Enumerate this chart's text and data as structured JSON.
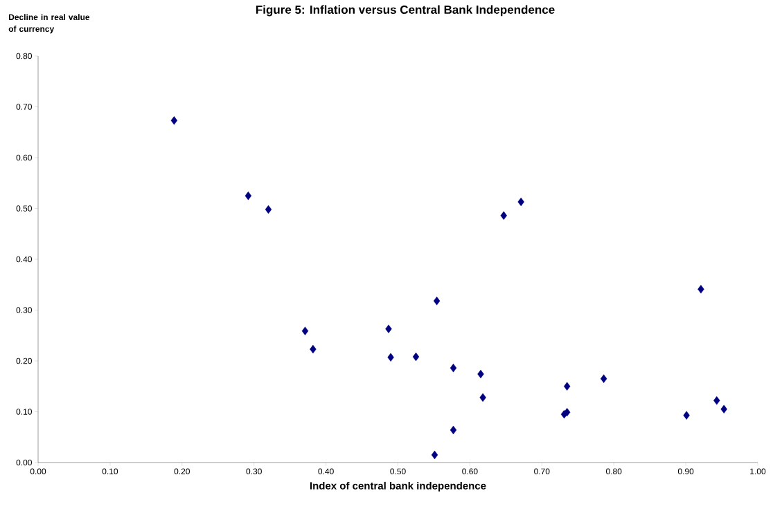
{
  "chart_data": {
    "type": "scatter",
    "title": "Figure 5: Inflation versus Central Bank Independence",
    "xlabel": "Index of central bank independence",
    "ylabel": "Decline in real value of currency",
    "x": [
      0.189,
      0.292,
      0.32,
      0.371,
      0.382,
      0.487,
      0.49,
      0.525,
      0.554,
      0.551,
      0.577,
      0.577,
      0.615,
      0.618,
      0.647,
      0.671,
      0.731,
      0.735,
      0.735,
      0.786,
      0.901,
      0.921,
      0.943,
      0.953
    ],
    "values": [
      0.673,
      0.525,
      0.498,
      0.259,
      0.223,
      0.263,
      0.207,
      0.208,
      0.318,
      0.015,
      0.186,
      0.064,
      0.174,
      0.128,
      0.486,
      0.513,
      0.095,
      0.099,
      0.15,
      0.165,
      0.093,
      0.341,
      0.122,
      0.105
    ],
    "color": "#000080",
    "marker": "diamond",
    "grid": false,
    "xlim": [
      0,
      1
    ],
    "ylim": [
      0,
      0.8
    ],
    "xticks": [
      {
        "value": 0,
        "label": "0.00"
      },
      {
        "value": 0.1,
        "label": "0.10"
      },
      {
        "value": 0.2,
        "label": "0.20"
      },
      {
        "value": 0.3,
        "label": "0.30"
      },
      {
        "value": 0.4,
        "label": "0.40"
      },
      {
        "value": 0.5,
        "label": "0.50"
      },
      {
        "value": 0.6,
        "label": "0.60"
      },
      {
        "value": 0.7,
        "label": "0.70"
      },
      {
        "value": 0.8,
        "label": "0.80"
      },
      {
        "value": 0.9,
        "label": "0.90"
      },
      {
        "value": 1,
        "label": "1.00"
      }
    ],
    "yticks": [
      {
        "value": 0,
        "label": "0.00"
      },
      {
        "value": 0.1,
        "label": "0.10"
      },
      {
        "value": 0.2,
        "label": "0.20"
      },
      {
        "value": 0.3,
        "label": "0.30"
      },
      {
        "value": 0.4,
        "label": "0.40"
      },
      {
        "value": 0.5,
        "label": "0.50"
      },
      {
        "value": 0.6,
        "label": "0.60"
      },
      {
        "value": 0.7,
        "label": "0.70"
      },
      {
        "value": 0.8,
        "label": "0.80"
      }
    ]
  }
}
